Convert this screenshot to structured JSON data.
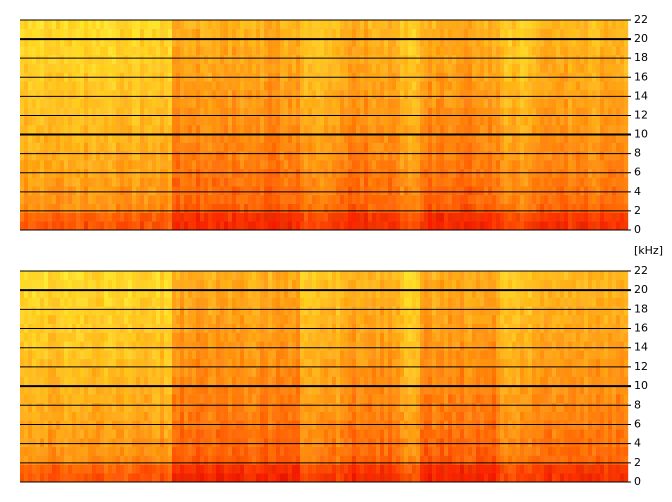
{
  "chart_data": [
    {
      "type": "spectrogram",
      "y_label": "[kHz]",
      "ylim": [
        0,
        22
      ],
      "yticks": [
        0,
        2,
        4,
        6,
        8,
        10,
        12,
        14,
        16,
        18,
        20,
        22
      ]
    },
    {
      "type": "spectrogram",
      "ylim": [
        0,
        22
      ],
      "yticks": [
        0,
        2,
        4,
        6,
        8,
        10,
        12,
        14,
        16,
        18,
        20,
        22
      ]
    }
  ]
}
